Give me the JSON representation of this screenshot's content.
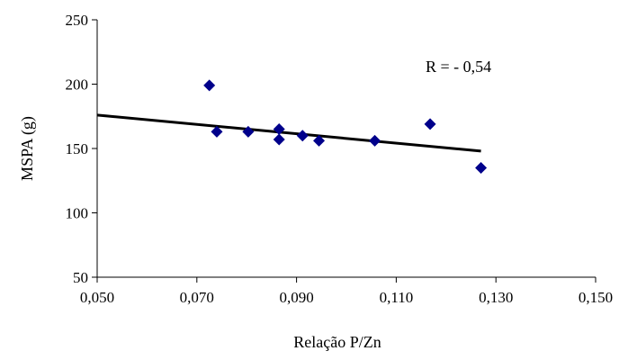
{
  "chart_data": {
    "type": "scatter",
    "title": "",
    "xlabel": "Relação P/Zn",
    "ylabel": "MSPA (g)",
    "xlim": [
      0.05,
      0.15
    ],
    "ylim": [
      50,
      250
    ],
    "x_ticks": [
      0.05,
      0.07,
      0.09,
      0.11,
      0.13,
      0.15
    ],
    "x_tick_labels": [
      "0,050",
      "0,070",
      "0,090",
      "0,110",
      "0,130",
      "0,150"
    ],
    "y_ticks": [
      50,
      100,
      150,
      200,
      250
    ],
    "y_tick_labels": [
      "50",
      "100",
      "150",
      "200",
      "250"
    ],
    "grid": false,
    "legend": "none",
    "marker_color": "#00008B",
    "line_color": "#000000",
    "series": [
      {
        "x": [
          0.0725,
          0.074,
          0.0803,
          0.0865,
          0.0865,
          0.0912,
          0.0945,
          0.1057,
          0.1168,
          0.127
        ],
        "y": [
          199,
          163,
          163,
          165,
          157,
          160,
          156,
          156,
          169,
          135
        ]
      }
    ],
    "trendline": {
      "x": [
        0.05,
        0.127
      ],
      "y": [
        176,
        148
      ]
    },
    "annotation": "R = - 0,54"
  }
}
